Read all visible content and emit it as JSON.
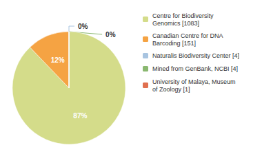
{
  "chart_data": {
    "type": "pie",
    "categories": [
      "Centre for Biodiversity\nGenomics [1083]",
      "Canadian Centre for DNA\nBarcoding [151]",
      "Naturalis Biodiversity Center [4]",
      "Mined from GenBank, NCBI [4]",
      "University of Malaya, Museum\nof Zoology [1]"
    ],
    "values": [
      87,
      12,
      0,
      0,
      0
    ],
    "value_labels": [
      "87%",
      "12%",
      "0%",
      "0%",
      null
    ],
    "colors": [
      "#d4dc8a",
      "#f5a343",
      "#a8c4e0",
      "#8ab870",
      "#e07050"
    ],
    "data_labels": true,
    "legend": "right"
  }
}
